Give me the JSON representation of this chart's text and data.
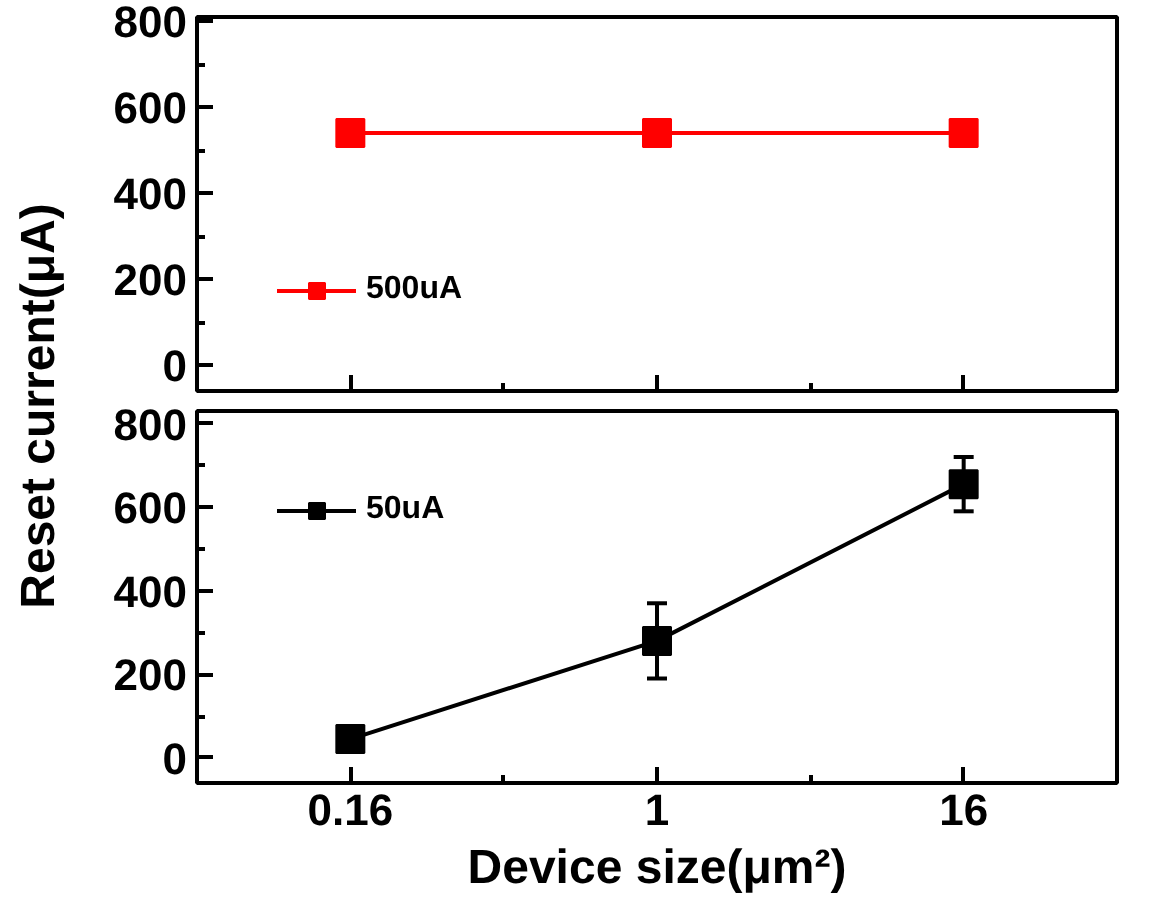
{
  "chart_data": [
    {
      "type": "line",
      "categories": [
        "0.16",
        "1",
        "16"
      ],
      "ylabel": "Reset current(μA)",
      "ylim": [
        -60,
        810
      ],
      "yticks": [
        0,
        200,
        400,
        600,
        800
      ],
      "tick_labels": "y",
      "marker": "square",
      "legend": "bottom left",
      "grid": false,
      "series": [
        {
          "name": "500uA",
          "color": "#ff0000",
          "values": [
            540,
            540,
            540
          ]
        }
      ]
    },
    {
      "type": "line",
      "categories": [
        "0.16",
        "1",
        "16"
      ],
      "xlabel": "Device size(μm²)",
      "ylim": [
        -60,
        830
      ],
      "yticks": [
        0,
        200,
        400,
        600,
        800
      ],
      "marker": "square",
      "legend": "top left",
      "grid": false,
      "series": [
        {
          "name": "50uA",
          "color": "#000000",
          "values": [
            45,
            280,
            655
          ],
          "errors": [
            20,
            90,
            65
          ]
        }
      ]
    }
  ]
}
